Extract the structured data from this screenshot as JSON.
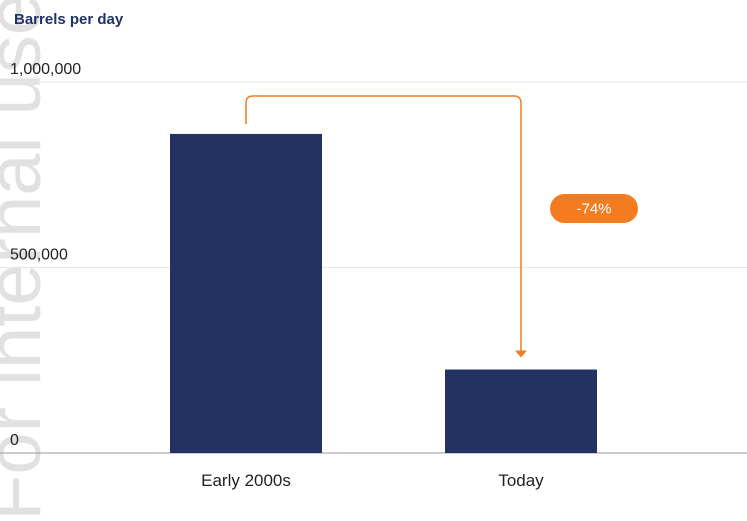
{
  "watermark": "For internal use only",
  "chart_data": {
    "type": "bar",
    "title": "",
    "ylabel": "Barrels per day",
    "xlabel": "",
    "ylim": [
      0,
      1000000
    ],
    "yticks": [
      0,
      500000,
      1000000
    ],
    "ytick_labels": [
      "0",
      "500,000",
      "1,000,000"
    ],
    "categories": [
      "Early 2000s",
      "Today"
    ],
    "values": [
      860000,
      225000
    ],
    "annotations": [
      {
        "from": "Early 2000s",
        "to": "Today",
        "label": "-74%"
      }
    ],
    "grid": true,
    "colors": {
      "bar": "#233263",
      "accent": "#f47c20",
      "grid": "#e6e6e6",
      "axis": "#999999",
      "ylabel": "#1f3366"
    }
  }
}
